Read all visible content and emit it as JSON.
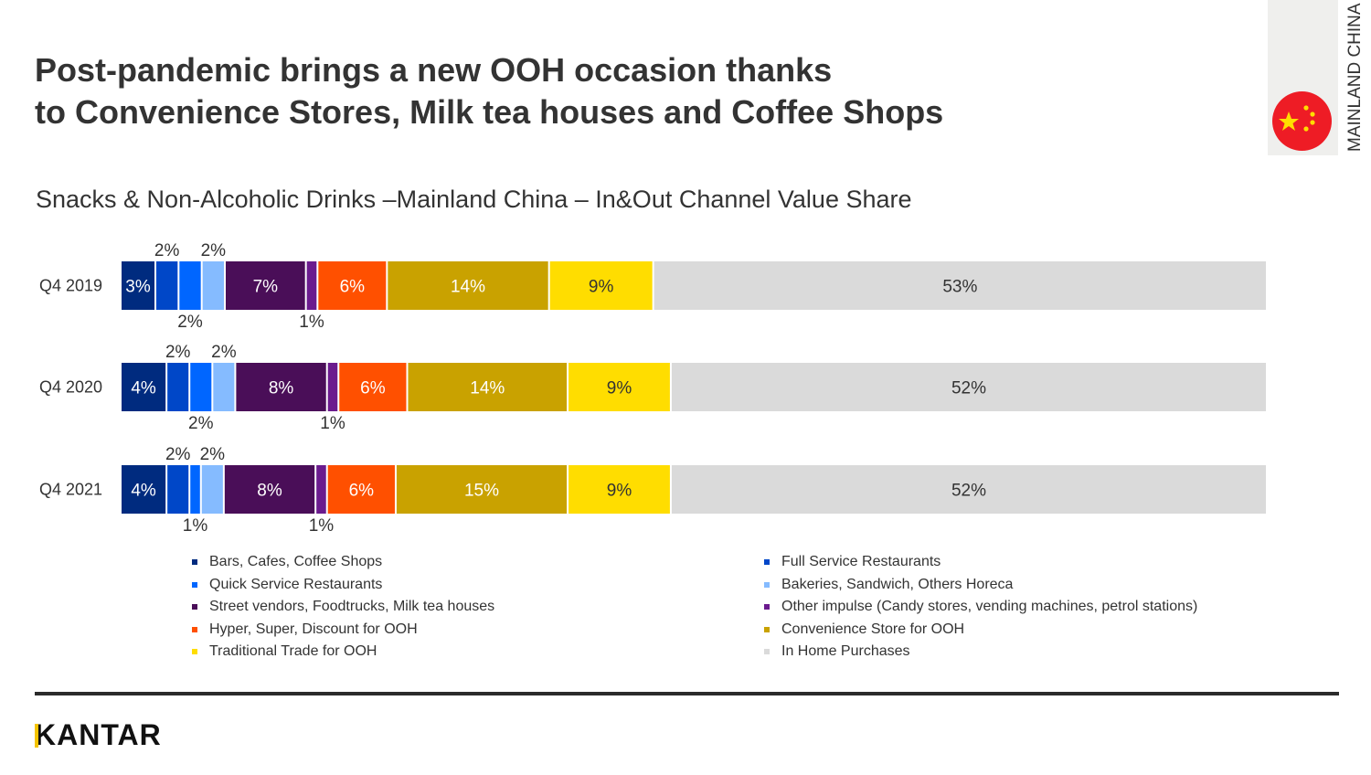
{
  "header": {
    "title_line1": "Post-pandemic brings a new OOH occasion thanks",
    "title_line2": "to Convenience Stores, Milk tea houses and Coffee Shops",
    "region": "MAINLAND CHINA",
    "flag_icon": "china-flag-icon"
  },
  "logo": "KANTAR",
  "chart_data": {
    "type": "bar",
    "orientation": "horizontal-stacked-100",
    "title": "Snacks & Non-Alcoholic Drinks –Mainland China – In&Out Channel Value Share",
    "categories": [
      "Q4 2019",
      "Q4 2020",
      "Q4 2021"
    ],
    "series": [
      {
        "name": "Bars, Cafes, Coffee Shops",
        "color": "#002B7F",
        "values": [
          3,
          4,
          4
        ]
      },
      {
        "name": "Full Service Restaurants",
        "color": "#0047C8",
        "values": [
          2,
          2,
          2
        ]
      },
      {
        "name": "Quick Service Restaurants",
        "color": "#0066FF",
        "values": [
          2,
          2,
          1
        ]
      },
      {
        "name": "Bakeries, Sandwich, Others Horeca",
        "color": "#85BBFF",
        "values": [
          2,
          2,
          2
        ]
      },
      {
        "name": "Street vendors, Foodtrucks, Milk tea houses",
        "color": "#4A0E58",
        "values": [
          7,
          8,
          8
        ]
      },
      {
        "name": "Other impulse (Candy stores, vending machines, petrol stations)",
        "color": "#6B1B8E",
        "values": [
          1,
          1,
          1
        ]
      },
      {
        "name": "Hyper, Super, Discount for OOH",
        "color": "#FF5000",
        "values": [
          6,
          6,
          6
        ]
      },
      {
        "name": "Convenience Store for OOH",
        "color": "#C9A200",
        "values": [
          14,
          14,
          15
        ]
      },
      {
        "name": "Traditional Trade for OOH",
        "color": "#FFDD00",
        "values": [
          9,
          9,
          9
        ]
      },
      {
        "name": "In Home Purchases",
        "color": "#DADADA",
        "values": [
          53,
          52,
          52
        ]
      }
    ],
    "value_suffix": "%",
    "legend_order": [
      0,
      2,
      4,
      6,
      8,
      1,
      3,
      5,
      7,
      9
    ],
    "legend_placement": "bottom"
  }
}
